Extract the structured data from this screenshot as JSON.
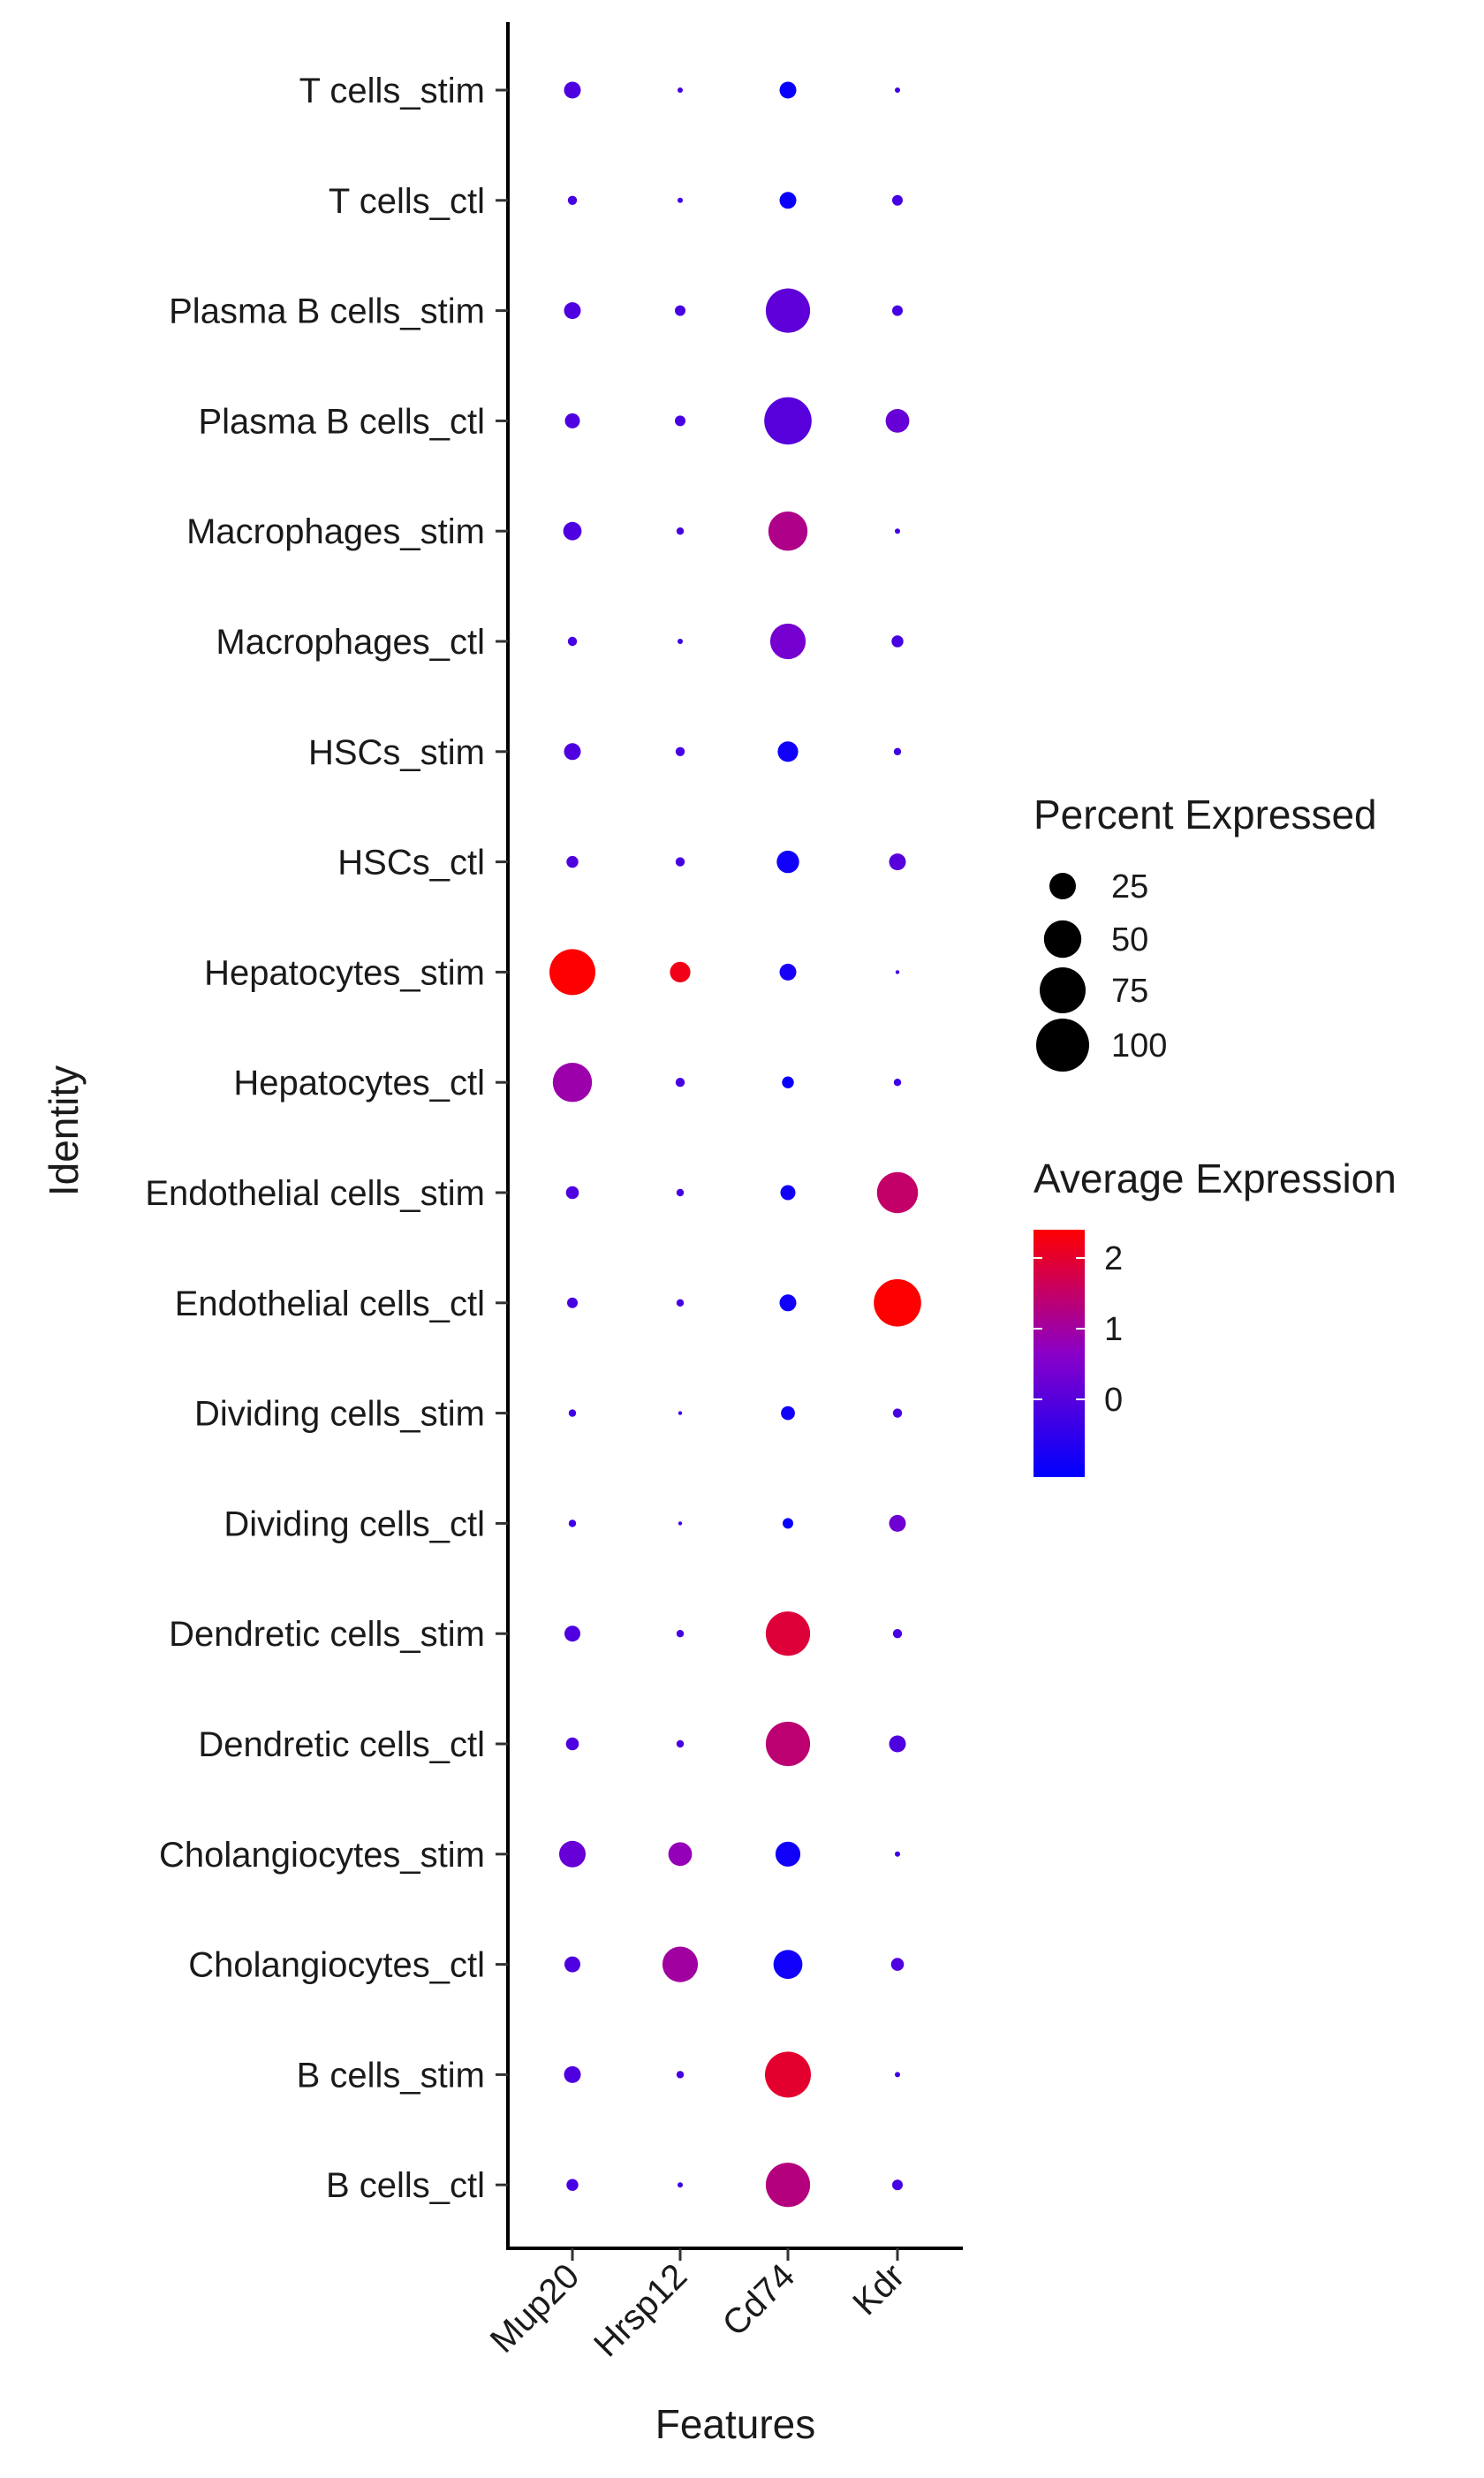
{
  "chart_data": {
    "type": "dot",
    "xlabel": "Features",
    "ylabel": "Identity",
    "features": [
      "Mup20",
      "Hrsp12",
      "Cd74",
      "Kdr"
    ],
    "identities": [
      "T cells_stim",
      "T cells_ctl",
      "Plasma B cells_stim",
      "Plasma B cells_ctl",
      "Macrophages_stim",
      "Macrophages_ctl",
      "HSCs_stim",
      "HSCs_ctl",
      "Hepatocytes_stim",
      "Hepatocytes_ctl",
      "Endothelial cells_stim",
      "Endothelial cells_ctl",
      "Dividing cells_stim",
      "Dividing cells_ctl",
      "Dendretic cells_stim",
      "Dendretic cells_ctl",
      "Cholangiocytes_stim",
      "Cholangiocytes_ctl",
      "B cells_stim",
      "B cells_ctl"
    ],
    "percent_expressed": [
      [
        10,
        1,
        10,
        1
      ],
      [
        3,
        1,
        10,
        4
      ],
      [
        10,
        4,
        70,
        4
      ],
      [
        8,
        4,
        80,
        20
      ],
      [
        12,
        2,
        55,
        1
      ],
      [
        3,
        1,
        45,
        5
      ],
      [
        10,
        3,
        15,
        2
      ],
      [
        5,
        3,
        18,
        10
      ],
      [
        75,
        15,
        10,
        0.5
      ],
      [
        55,
        3,
        5,
        2
      ],
      [
        6,
        2,
        8,
        60
      ],
      [
        4,
        2,
        10,
        80
      ],
      [
        2,
        0.5,
        7,
        3
      ],
      [
        2,
        0.5,
        4,
        10
      ],
      [
        9,
        2,
        70,
        3
      ],
      [
        6,
        2,
        70,
        10
      ],
      [
        25,
        20,
        22,
        1
      ],
      [
        9,
        45,
        30,
        6
      ],
      [
        10,
        2,
        75,
        1
      ],
      [
        5,
        1,
        70,
        4
      ]
    ],
    "average_expression": [
      [
        -0.1,
        -0.2,
        -1.0,
        -0.3
      ],
      [
        -0.2,
        -0.3,
        -1.0,
        -0.2
      ],
      [
        -0.1,
        -0.2,
        0.1,
        -0.2
      ],
      [
        -0.1,
        -0.2,
        0.0,
        0.2
      ],
      [
        -0.1,
        -0.2,
        1.2,
        -0.3
      ],
      [
        -0.2,
        -0.3,
        0.4,
        -0.2
      ],
      [
        -0.1,
        -0.2,
        -0.9,
        -0.3
      ],
      [
        -0.1,
        -0.2,
        -0.9,
        0.0
      ],
      [
        2.4,
        2.2,
        -0.8,
        -0.3
      ],
      [
        0.9,
        -0.2,
        -1.0,
        -0.3
      ],
      [
        -0.1,
        -0.2,
        -0.9,
        1.5
      ],
      [
        -0.2,
        -0.2,
        -0.9,
        2.4
      ],
      [
        -0.3,
        -0.3,
        -0.9,
        -0.2
      ],
      [
        -0.3,
        -0.3,
        -1.0,
        0.3
      ],
      [
        -0.1,
        -0.2,
        1.9,
        -0.2
      ],
      [
        -0.1,
        -0.2,
        1.4,
        -0.1
      ],
      [
        0.2,
        0.8,
        -0.9,
        -0.3
      ],
      [
        -0.1,
        1.0,
        -0.9,
        -0.1
      ],
      [
        -0.1,
        -0.2,
        2.0,
        -0.3
      ],
      [
        -0.2,
        -0.3,
        1.3,
        -0.2
      ]
    ],
    "size_legend": {
      "title": "Percent Expressed",
      "breaks": [
        25,
        50,
        75,
        100
      ],
      "labels": [
        "25",
        "50",
        "75",
        "100"
      ]
    },
    "color_legend": {
      "title": "Average Expression",
      "breaks": [
        0,
        1,
        2
      ],
      "labels": [
        "0",
        "1",
        "2"
      ],
      "range": [
        -1.1,
        2.4
      ],
      "low_color": "#0000FF",
      "high_color": "#FF0000"
    },
    "legend_position": "right",
    "grid": false
  }
}
